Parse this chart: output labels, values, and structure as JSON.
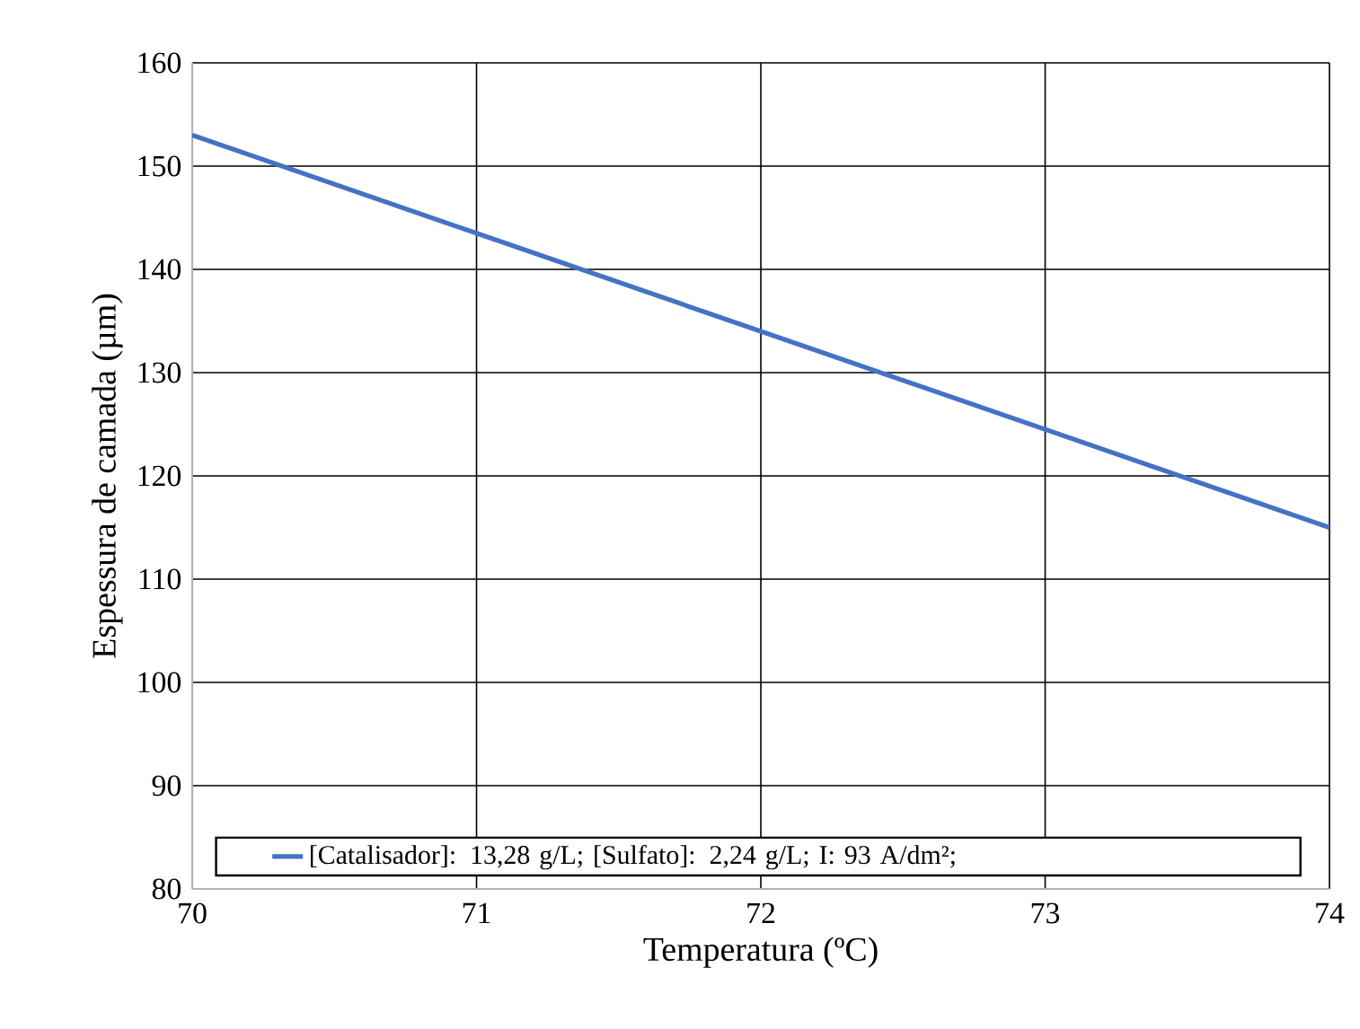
{
  "chart_data": {
    "type": "line",
    "xlabel": "Temperatura (ºC)",
    "ylabel": "Espessura de camada (µm)",
    "x": [
      70,
      71,
      72,
      73,
      74
    ],
    "series": [
      {
        "name": "[Catalisador]: 13,28 g/L; [Sulfato]: 2,24 g/L; I: 93 A/dm²;",
        "color": "#4472c4",
        "values": [
          153,
          143.5,
          134,
          124.5,
          115
        ]
      }
    ],
    "xlim": [
      70,
      74
    ],
    "xticks": [
      70,
      71,
      72,
      73,
      74
    ],
    "ylim": [
      80,
      160
    ],
    "yticks": [
      80,
      90,
      100,
      110,
      120,
      130,
      140,
      150,
      160
    ],
    "grid": true,
    "legend": "bottom",
    "marker": "none",
    "line_style": "solid"
  }
}
